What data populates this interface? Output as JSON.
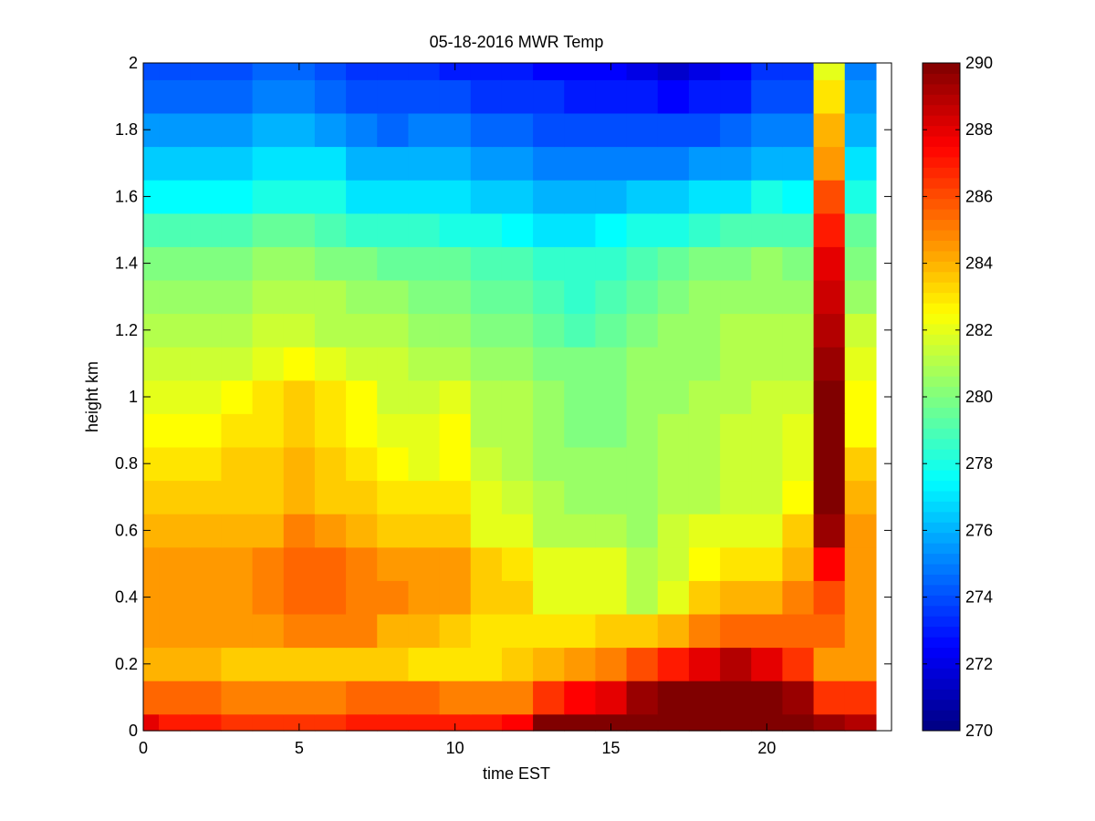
{
  "chart_data": {
    "type": "heatmap",
    "title": "05-18-2016 MWR Temp",
    "xlabel": "time EST",
    "ylabel": "height km",
    "xlim": [
      0,
      24
    ],
    "ylim": [
      0,
      2
    ],
    "xticks": [
      "0",
      "5",
      "10",
      "15",
      "20"
    ],
    "yticks": [
      "0",
      "0.2",
      "0.4",
      "0.6",
      "0.8",
      "1",
      "1.2",
      "1.4",
      "1.6",
      "1.8",
      "2"
    ],
    "colorbar": {
      "colormap": "jet",
      "range": [
        270,
        290
      ],
      "ticks": [
        "270",
        "272",
        "274",
        "276",
        "278",
        "280",
        "282",
        "284",
        "286",
        "288",
        "290"
      ]
    },
    "x": [
      0,
      0.5,
      1.5,
      2.5,
      3.5,
      4.5,
      5.5,
      6.5,
      7.5,
      8.5,
      9.5,
      10.5,
      11.5,
      12.5,
      13.5,
      14.5,
      15.5,
      16.5,
      17.5,
      18.5,
      19.5,
      20.5,
      21.5,
      22.5,
      23.5
    ],
    "y": [
      0,
      0.05,
      0.15,
      0.25,
      0.35,
      0.45,
      0.55,
      0.65,
      0.75,
      0.85,
      0.95,
      1.05,
      1.15,
      1.25,
      1.35,
      1.45,
      1.55,
      1.65,
      1.75,
      1.85,
      1.95,
      2.0
    ],
    "z": [
      [
        288,
        287,
        287,
        286.5,
        286.5,
        286.5,
        286.5,
        287,
        287,
        287,
        287,
        287,
        287.5,
        290,
        290,
        290,
        290,
        290,
        290,
        290,
        290,
        290,
        289.5,
        289
      ],
      [
        285.5,
        285.5,
        285.5,
        285,
        285,
        285,
        285,
        285.5,
        285.5,
        285.5,
        285,
        285,
        285,
        286.5,
        287.5,
        288,
        289.5,
        290,
        290,
        290,
        290,
        289.5,
        286.5,
        286.5
      ],
      [
        284,
        284,
        284,
        283.5,
        283.5,
        283.5,
        283.5,
        283.5,
        283.5,
        283,
        283,
        283,
        283.5,
        284,
        284.5,
        285,
        286,
        287,
        288,
        289,
        288,
        286.5,
        284.5,
        284.5
      ],
      [
        284.5,
        284.5,
        284.5,
        284.5,
        284.5,
        285,
        285,
        285,
        284,
        284,
        283.5,
        283,
        283,
        283,
        283,
        283.5,
        283.5,
        284,
        285,
        285.5,
        285.5,
        285.5,
        285.5,
        284.5
      ],
      [
        284.5,
        284.5,
        284.5,
        284.5,
        285,
        285.5,
        285.5,
        285,
        285,
        284.5,
        284.5,
        283.5,
        283.5,
        282,
        282,
        282,
        281,
        282,
        283.5,
        284,
        284,
        285,
        286,
        284.5
      ],
      [
        284.5,
        284.5,
        284.5,
        284.5,
        285,
        285.5,
        285.5,
        285,
        284.5,
        284.5,
        284.5,
        283.5,
        283,
        282,
        282,
        282,
        281,
        281.5,
        282.5,
        283,
        283,
        284,
        287.5,
        284.5
      ],
      [
        284,
        284,
        284,
        284,
        284,
        285,
        284.5,
        284,
        283.5,
        283.5,
        283.5,
        282,
        282,
        281,
        281,
        281,
        280.5,
        281.5,
        282,
        282,
        282,
        283.5,
        289.5,
        284.5
      ],
      [
        283.5,
        283.5,
        283.5,
        283.5,
        283.5,
        284,
        283.5,
        283.5,
        283,
        283,
        283,
        282,
        281.5,
        281,
        280.5,
        280.5,
        280.5,
        281,
        281,
        281.5,
        281.5,
        282.5,
        290,
        284
      ],
      [
        283,
        283,
        283,
        283.5,
        283.5,
        284,
        283.5,
        283,
        282.5,
        282,
        282.5,
        281.5,
        281,
        280.5,
        280.5,
        280.5,
        280.5,
        281,
        281,
        281.5,
        281.5,
        282,
        290,
        283.5
      ],
      [
        282.5,
        282.5,
        282.5,
        283,
        283,
        283.5,
        283,
        282.5,
        282,
        282,
        282.5,
        281,
        281,
        280.5,
        280,
        280,
        280.5,
        281,
        281,
        281.5,
        281.5,
        282,
        290,
        282.5
      ],
      [
        282,
        282,
        282,
        282.5,
        283,
        283.5,
        283,
        282.5,
        281.5,
        281.5,
        282,
        281,
        281,
        280.5,
        280,
        280,
        280.5,
        280.5,
        281,
        281,
        281.5,
        281.5,
        290,
        282.5
      ],
      [
        281.5,
        281.5,
        281.5,
        281.5,
        282,
        282.5,
        282,
        281.5,
        281.5,
        281,
        281,
        280.5,
        280.5,
        280,
        280,
        280,
        280.5,
        280.5,
        280.5,
        281,
        281,
        281,
        289.5,
        282
      ],
      [
        281,
        281,
        281,
        281,
        281.5,
        281.5,
        281,
        281,
        281,
        280.5,
        280.5,
        280,
        280,
        279.5,
        279,
        279.5,
        280,
        280.5,
        280.5,
        281,
        281,
        281,
        289,
        281.5
      ],
      [
        280.5,
        280.5,
        280.5,
        280.5,
        281,
        281,
        281,
        280.5,
        280.5,
        280,
        280,
        279.5,
        279.5,
        279,
        278.5,
        279,
        279.5,
        280,
        280.5,
        280.5,
        280.5,
        280.5,
        288.5,
        280.5
      ],
      [
        280,
        280,
        280,
        280,
        280.5,
        280.5,
        280,
        280,
        279.5,
        279.5,
        279.5,
        279,
        279,
        278.5,
        278.5,
        278.5,
        279,
        279.5,
        280,
        280,
        280.5,
        280,
        288,
        280
      ],
      [
        279,
        279,
        279,
        279,
        279.5,
        279.5,
        279,
        278.5,
        278.5,
        278.5,
        278,
        278,
        277.5,
        277,
        277,
        277.5,
        278,
        278,
        278.5,
        279,
        279,
        279,
        287,
        279.5
      ],
      [
        277.5,
        277.5,
        277.5,
        277.5,
        278,
        278,
        278,
        277,
        277,
        277,
        277,
        276.5,
        276.5,
        276,
        276,
        276,
        276.5,
        276.5,
        277,
        277,
        278,
        277.5,
        286,
        278
      ],
      [
        276.5,
        276.5,
        276.5,
        276.5,
        277,
        277,
        277,
        276,
        276,
        276,
        276,
        275.5,
        275.5,
        275,
        275,
        275,
        275,
        275,
        275.5,
        275.5,
        276,
        276,
        284.5,
        277
      ],
      [
        275.5,
        275.5,
        275.5,
        275.5,
        276,
        276,
        275.5,
        275,
        274.5,
        275,
        275,
        274.5,
        274.5,
        274,
        274,
        274,
        274,
        274,
        274,
        274.5,
        275,
        275,
        284,
        276
      ],
      [
        274.5,
        274.5,
        274.5,
        274.5,
        275,
        275,
        274.5,
        274,
        274,
        274,
        274,
        273.5,
        273.5,
        273.5,
        273,
        273,
        273,
        272.5,
        273,
        273,
        274,
        274,
        283,
        275.5
      ],
      [
        274,
        274,
        274,
        274,
        274.5,
        274.5,
        274,
        273.5,
        273.5,
        273.5,
        273,
        273,
        273,
        272.5,
        272.5,
        272.5,
        272,
        271.5,
        272,
        272.5,
        273.5,
        273.5,
        282,
        275
      ]
    ]
  }
}
